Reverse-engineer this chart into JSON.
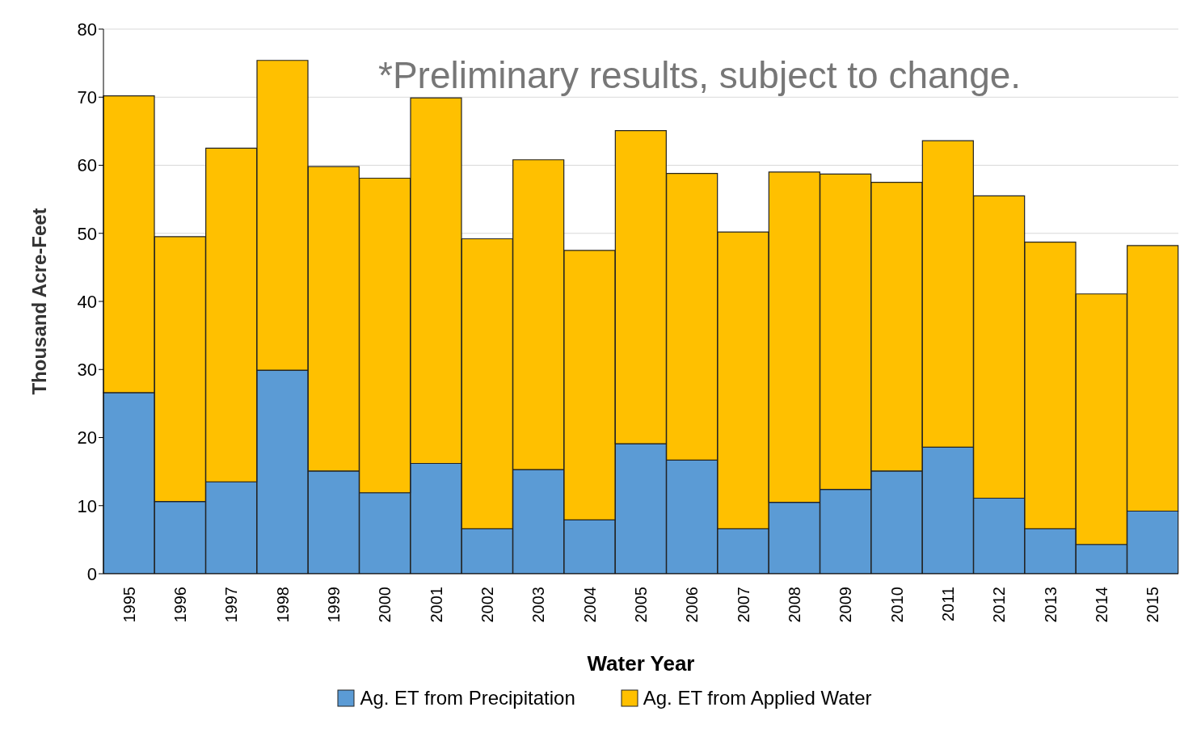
{
  "chart_data": {
    "type": "bar",
    "stacked": true,
    "xlabel": "Water Year",
    "ylabel": "Thousand Acre-Feet",
    "categories": [
      "1995",
      "1996",
      "1997",
      "1998",
      "1999",
      "2000",
      "2001",
      "2002",
      "2003",
      "2004",
      "2005",
      "2006",
      "2007",
      "2008",
      "2009",
      "2010",
      "2011",
      "2012",
      "2013",
      "2014",
      "2015"
    ],
    "series": [
      {
        "name": "Ag. ET from Precipitation",
        "color": "#5b9bd5",
        "values": [
          26.6,
          10.6,
          13.5,
          29.9,
          15.1,
          11.9,
          16.2,
          6.6,
          15.3,
          7.9,
          19.1,
          16.7,
          6.6,
          10.5,
          12.4,
          15.1,
          18.6,
          11.1,
          6.6,
          4.3,
          9.2
        ]
      },
      {
        "name": "Ag. ET from Applied Water",
        "color": "#ffc000",
        "values": [
          43.6,
          38.9,
          49.0,
          45.5,
          44.7,
          46.2,
          53.7,
          42.6,
          45.5,
          39.6,
          46.0,
          42.1,
          43.6,
          48.5,
          46.3,
          42.4,
          45.0,
          44.4,
          42.1,
          36.8,
          39.0
        ]
      }
    ],
    "ylim": [
      0,
      80
    ],
    "yticks": [
      0,
      10,
      20,
      30,
      40,
      50,
      60,
      70,
      80
    ],
    "grid": "y",
    "legend": "bottom",
    "annotations": [
      "*Preliminary results, subject to change."
    ]
  }
}
